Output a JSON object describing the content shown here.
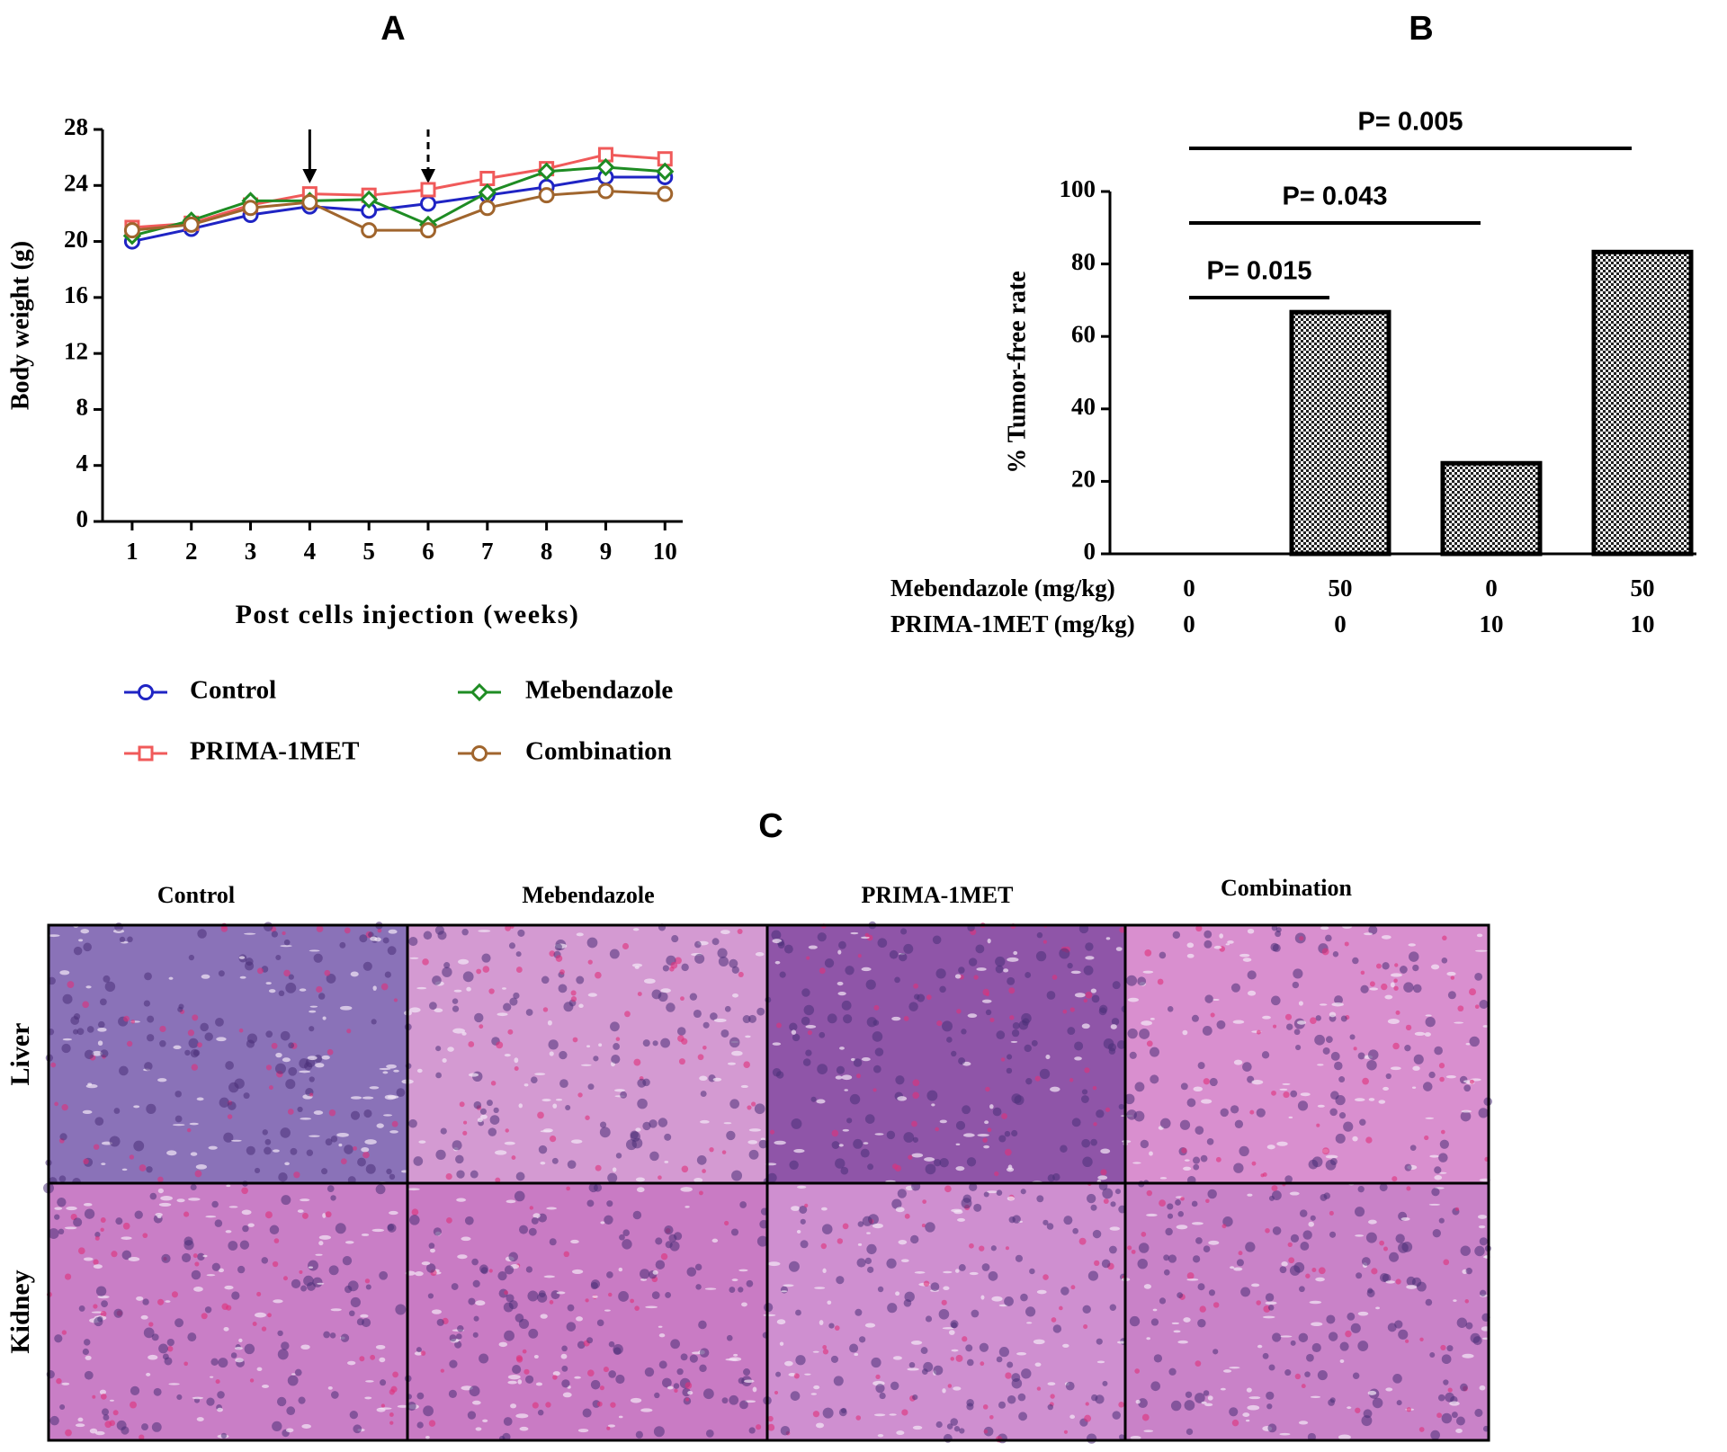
{
  "chart_data": [
    {
      "type": "line",
      "label": "A",
      "ylabel": "Body weight (g)",
      "xlabel": "Post cells injection (weeks)",
      "x": [
        1,
        2,
        3,
        4,
        5,
        6,
        7,
        8,
        9,
        10
      ],
      "xlim": [
        0.5,
        10.3
      ],
      "xticks": [
        1,
        2,
        3,
        4,
        5,
        6,
        7,
        8,
        9,
        10
      ],
      "ylim": [
        0,
        28
      ],
      "yticks": [
        0,
        4,
        8,
        12,
        16,
        20,
        24,
        28
      ],
      "arrows": [
        {
          "x": 4,
          "style": "solid"
        },
        {
          "x": 6,
          "style": "dashed"
        }
      ],
      "series": [
        {
          "name": "Control",
          "color": "#1f24c4",
          "marker": "circle",
          "values": [
            20.0,
            20.9,
            21.9,
            22.5,
            22.2,
            22.7,
            23.3,
            23.9,
            24.6,
            24.6
          ]
        },
        {
          "name": "PRIMA-1MET",
          "color": "#f05a5a",
          "marker": "square",
          "values": [
            21.0,
            21.3,
            22.6,
            23.4,
            23.3,
            23.7,
            24.5,
            25.2,
            26.2,
            25.9
          ]
        },
        {
          "name": "Mebendazole",
          "color": "#1e8c23",
          "marker": "diamond",
          "values": [
            20.4,
            21.5,
            22.9,
            22.9,
            23.0,
            21.2,
            23.5,
            25.0,
            25.3,
            25.0
          ]
        },
        {
          "name": "Combination",
          "color": "#a0652d",
          "marker": "circle",
          "values": [
            20.8,
            21.2,
            22.4,
            22.8,
            20.8,
            20.8,
            22.4,
            23.3,
            23.6,
            23.4
          ]
        }
      ]
    },
    {
      "type": "bar",
      "label": "B",
      "ylabel": "% Tumor-free rate",
      "values": [
        0,
        66.7,
        25,
        83.3
      ],
      "pattern": "checker",
      "ylim": [
        0,
        100
      ],
      "yticks": [
        0,
        20,
        40,
        60,
        80,
        100
      ],
      "dose_rows": [
        {
          "label": "Mebendazole (mg/kg)",
          "values": [
            0,
            50,
            0,
            50
          ]
        },
        {
          "label": "PRIMA-1MET (mg/kg)",
          "values": [
            0,
            0,
            10,
            10
          ]
        }
      ],
      "comparisons": [
        {
          "from": 0,
          "to": 1,
          "label": "P= 0.015"
        },
        {
          "from": 0,
          "to": 2,
          "label": "P= 0.043"
        },
        {
          "from": 0,
          "to": 3,
          "label": "P= 0.005"
        }
      ]
    }
  ],
  "panel_c": {
    "label": "C",
    "columns": [
      "Control",
      "Mebendazole",
      "PRIMA-1MET",
      "Combination"
    ],
    "rows": [
      "Liver",
      "Kidney"
    ]
  }
}
